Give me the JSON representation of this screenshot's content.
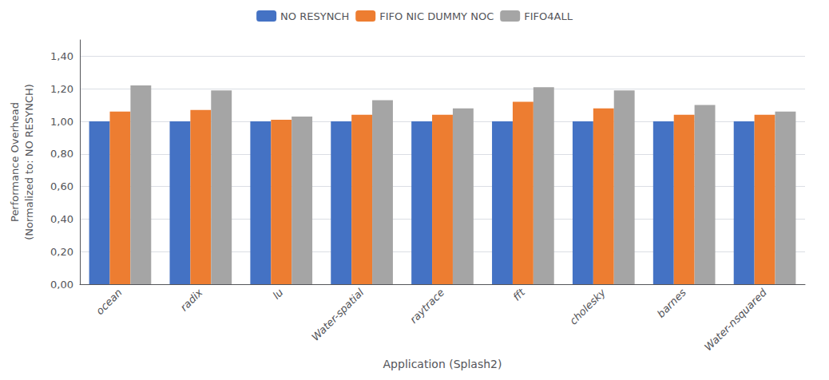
{
  "chart_data": {
    "type": "bar",
    "categories": [
      "ocean",
      "radix",
      "lu",
      "Water-spatial",
      "raytrace",
      "fft",
      "cholesky",
      "barnes",
      "Water-nsquared"
    ],
    "series": [
      {
        "name": "NO RESYNCH",
        "color": "#4472C4",
        "values": [
          1.0,
          1.0,
          1.0,
          1.0,
          1.0,
          1.0,
          1.0,
          1.0,
          1.0
        ]
      },
      {
        "name": "FIFO NIC DUMMY NOC",
        "color": "#ED7D31",
        "values": [
          1.06,
          1.07,
          1.01,
          1.04,
          1.04,
          1.12,
          1.08,
          1.04,
          1.04
        ]
      },
      {
        "name": "FIFO4ALL",
        "color": "#A5A5A5",
        "values": [
          1.22,
          1.19,
          1.03,
          1.13,
          1.08,
          1.21,
          1.19,
          1.1,
          1.06
        ]
      }
    ],
    "xlabel": "Application (Splash2)",
    "ylabel": "Performance Overhead\n(Normalized to: NO RESYNCH)",
    "ylim": [
      0.0,
      1.5
    ],
    "yticks": [
      {
        "value": 0.0,
        "label": "0,00"
      },
      {
        "value": 0.2,
        "label": "0,20"
      },
      {
        "value": 0.4,
        "label": "0,40"
      },
      {
        "value": 0.6,
        "label": "0,60"
      },
      {
        "value": 0.8,
        "label": "0,80"
      },
      {
        "value": 1.0,
        "label": "1,00"
      },
      {
        "value": 1.2,
        "label": "1,20"
      },
      {
        "value": 1.4,
        "label": "1,40"
      }
    ],
    "grid": true,
    "legend": "top"
  }
}
